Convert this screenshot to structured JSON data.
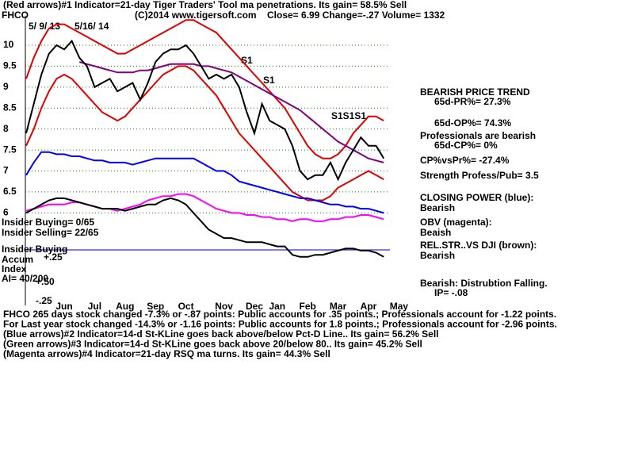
{
  "chart_data": {
    "type": "line",
    "title": "(Red arrows)#1 Indicator=21-day Tiger Traders' Tool ma penetrations. Its gain= 58.5% Sell",
    "ticker": "FHCO",
    "subtitle": [
      "(C)2014 www.tigersoft.com",
      "Close=  6.99  Change=-.27 Volume= 1332"
    ],
    "date_labels": [
      "5/ 9/ 13",
      "5/16/ 14"
    ],
    "annotations": [
      "S1",
      "S1",
      "S1S1S1"
    ],
    "categories": [
      null,
      null,
      null,
      null,
      null,
      "Jun",
      null,
      null,
      null,
      "Jul",
      null,
      null,
      null,
      "Aug",
      null,
      null,
      null,
      "Sep",
      null,
      null,
      null,
      "Oct",
      null,
      null,
      null,
      null,
      "Nov",
      null,
      null,
      null,
      "Dec",
      null,
      null,
      "Jan",
      null,
      null,
      null,
      "Feb",
      null,
      null,
      null,
      "Mar",
      null,
      null,
      null,
      "Apr",
      null,
      null,
      null,
      "May"
    ],
    "ylim": [
      3.8,
      10.7
    ],
    "yticks": [
      10,
      9.5,
      9,
      8.5,
      8,
      7.5,
      7,
      6.5,
      6
    ],
    "grid": true,
    "series": [
      {
        "color": "#e00000",
        "values": [
          9.2,
          9.7,
          10.1,
          10.4,
          10.5,
          10.5,
          10.4,
          10.3,
          10.2,
          10.1,
          10.0,
          9.9,
          9.8,
          9.8,
          9.9,
          10.0,
          10.1,
          10.2,
          10.3,
          10.4,
          10.5,
          10.6,
          10.6,
          10.5,
          10.4,
          10.3,
          10.1,
          9.9,
          9.7,
          9.5,
          9.3,
          9.1,
          8.9,
          8.7,
          8.5,
          8.2,
          7.9,
          7.6,
          7.4,
          7.3,
          7.3,
          7.4,
          7.6,
          7.9,
          8.1,
          8.3,
          8.3,
          8.2,
          null,
          null
        ]
      },
      {
        "color": "#e00000",
        "values": [
          7.6,
          8.0,
          8.5,
          8.9,
          9.2,
          9.3,
          9.2,
          9.0,
          8.8,
          8.6,
          8.4,
          8.3,
          8.2,
          8.3,
          8.5,
          8.7,
          8.9,
          9.1,
          9.3,
          9.4,
          9.5,
          9.5,
          9.4,
          9.2,
          9.0,
          8.8,
          8.5,
          8.2,
          7.9,
          7.7,
          7.5,
          7.3,
          7.1,
          6.9,
          6.7,
          6.5,
          6.4,
          6.3,
          6.3,
          6.3,
          6.4,
          6.6,
          6.7,
          6.8,
          6.9,
          7.0,
          6.9,
          6.8,
          null,
          null
        ]
      },
      {
        "color": "#800080",
        "values": [
          null,
          null,
          null,
          null,
          null,
          null,
          null,
          9.6,
          9.55,
          9.5,
          9.45,
          9.4,
          9.35,
          9.35,
          9.35,
          9.4,
          9.4,
          9.45,
          9.5,
          9.55,
          9.55,
          9.55,
          9.55,
          9.5,
          9.5,
          9.45,
          9.4,
          9.35,
          9.25,
          9.15,
          9.05,
          8.95,
          8.85,
          8.75,
          8.65,
          8.55,
          8.45,
          8.3,
          8.15,
          8.0,
          7.85,
          7.7,
          7.6,
          7.5,
          7.4,
          7.3,
          7.25,
          7.2,
          null,
          null
        ]
      },
      {
        "color": "#000000",
        "values": [
          7.9,
          8.6,
          9.3,
          9.8,
          10.0,
          9.9,
          10.1,
          9.7,
          9.5,
          9.0,
          9.1,
          9.2,
          8.9,
          9.0,
          9.1,
          8.7,
          9.1,
          9.6,
          9.8,
          9.9,
          9.9,
          10.0,
          9.8,
          9.5,
          9.2,
          9.3,
          9.2,
          9.3,
          9.0,
          8.4,
          7.9,
          8.6,
          8.2,
          8.1,
          8.0,
          7.6,
          7.0,
          6.8,
          6.9,
          6.9,
          7.2,
          6.8,
          7.2,
          7.5,
          7.8,
          7.6,
          7.6,
          7.3,
          null,
          null
        ]
      },
      {
        "color": "#0000ff",
        "values": [
          6.9,
          7.2,
          7.45,
          7.45,
          7.4,
          7.4,
          7.35,
          7.35,
          7.3,
          7.25,
          7.25,
          7.2,
          7.2,
          7.2,
          7.15,
          7.2,
          7.25,
          7.3,
          7.3,
          7.3,
          7.3,
          7.3,
          7.3,
          7.2,
          7.1,
          7.0,
          7.0,
          6.9,
          6.75,
          6.7,
          6.65,
          6.6,
          6.55,
          6.5,
          6.45,
          6.4,
          6.35,
          6.35,
          6.3,
          6.25,
          6.2,
          6.2,
          6.15,
          6.15,
          6.1,
          6.1,
          6.05,
          6.0,
          null,
          null
        ]
      },
      {
        "color": "#ff00ff",
        "values": [
          6.05,
          6.1,
          6.15,
          6.2,
          6.2,
          6.2,
          6.25,
          6.25,
          6.2,
          6.15,
          6.1,
          6.1,
          6.05,
          6.1,
          6.15,
          6.2,
          6.3,
          6.35,
          6.4,
          6.4,
          6.45,
          6.45,
          6.4,
          6.3,
          6.2,
          6.1,
          6.05,
          6.0,
          6.0,
          5.95,
          5.95,
          5.9,
          5.9,
          5.85,
          5.85,
          5.8,
          5.85,
          5.85,
          5.8,
          5.8,
          5.85,
          5.85,
          5.9,
          5.9,
          5.95,
          5.95,
          5.9,
          5.85,
          null,
          null
        ]
      },
      {
        "color": "#000000",
        "values": [
          6.0,
          6.1,
          6.2,
          6.3,
          6.35,
          6.35,
          6.3,
          6.25,
          6.2,
          6.15,
          6.1,
          6.1,
          6.1,
          6.05,
          6.1,
          6.15,
          6.2,
          6.2,
          6.3,
          6.35,
          6.3,
          6.2,
          6.0,
          5.8,
          5.6,
          5.5,
          5.4,
          5.4,
          5.35,
          5.3,
          5.3,
          5.3,
          5.25,
          5.2,
          5.2,
          5.0,
          4.95,
          4.95,
          5.0,
          5.0,
          5.05,
          5.1,
          5.15,
          5.15,
          5.1,
          5.1,
          5.05,
          4.95,
          null,
          null
        ]
      }
    ]
  },
  "left_labels": [
    "Insider Buying= 0/65",
    "Insider Selling= 22/65",
    "Insider Buying",
    "Accum",
    "Index",
    "AI= 40/200",
    "+.25",
    "+.50",
    "-.25"
  ],
  "panel": [
    "BEARISH PRICE TREND",
    "65d-PR%= 27.3%",
    "65d-OP%= 74.3%",
    "Professionals are bearish",
    "65d-CP%= 0%",
    "CP%vsPr%= -27.4%",
    "Strength Profess/Pub= 3.5",
    "CLOSING POWER (blue):",
    "Bearish",
    "OBV (magenta):",
    "Beaish",
    "REL.STR..VS DJI (brown):",
    "Bearish",
    "Bearish:  Distrubtion Falling.",
    "IP= -.08"
  ],
  "footer": [
    "FHCO  265 days stock changed -7.3% or -.87 points:  Public accounts for  .35 points.;  Professionals account for -1.22 points.",
    "For Last year stock changed -14.3% or -1.16 points:  Public accounts for  1.8 points.;  Professionals account for -2.96 points.",
    "(Blue arrows)#2 Indicator=14-d St-KLine goes back above/below Pct-D Line.. Its gain= 56.2% Sell",
    "(Green arrows)#3 Indicator=14-d St-KLine goes back above 20/below 80.. Its gain= 45.2% Sell",
    "(Magenta arrows)#4 Indicator=21-day RSQ ma turns. Its gain= 44.3% Sell"
  ]
}
